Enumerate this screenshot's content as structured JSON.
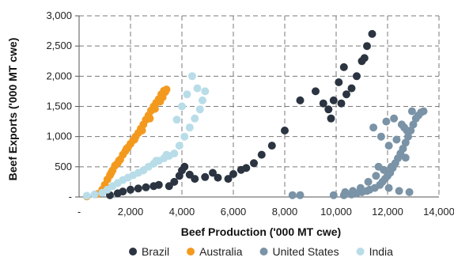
{
  "chart_data": {
    "type": "scatter",
    "xlabel": "Beef Production ('000 MT cwe)",
    "ylabel": "Beef Exports ('000 MT cwe)",
    "xlim": [
      0,
      14000
    ],
    "ylim": [
      0,
      3000
    ],
    "x_ticks": [
      0,
      2000,
      4000,
      6000,
      8000,
      10000,
      12000,
      14000
    ],
    "x_tick_labels": [
      "-",
      "2,000",
      "4,000",
      "6,000",
      "8,000",
      "10,000",
      "12,000",
      "14,000"
    ],
    "y_ticks": [
      0,
      500,
      1000,
      1500,
      2000,
      2500,
      3000
    ],
    "y_tick_labels": [
      "-",
      "500",
      "1,000",
      "1,500",
      "2,000",
      "2,500",
      "3,000"
    ],
    "grid": "dashed",
    "legend_position": "bottom",
    "series": [
      {
        "name": "Brazil",
        "color": "#2b3440",
        "points": [
          [
            1200,
            30
          ],
          [
            1500,
            60
          ],
          [
            1700,
            90
          ],
          [
            2000,
            120
          ],
          [
            2300,
            140
          ],
          [
            2600,
            160
          ],
          [
            2900,
            180
          ],
          [
            3100,
            200
          ],
          [
            3500,
            180
          ],
          [
            3700,
            250
          ],
          [
            3900,
            350
          ],
          [
            4000,
            440
          ],
          [
            4100,
            500
          ],
          [
            4300,
            370
          ],
          [
            4500,
            300
          ],
          [
            4900,
            330
          ],
          [
            5200,
            400
          ],
          [
            5400,
            320
          ],
          [
            5800,
            300
          ],
          [
            6000,
            380
          ],
          [
            6300,
            450
          ],
          [
            6500,
            480
          ],
          [
            6800,
            560
          ],
          [
            7100,
            700
          ],
          [
            7500,
            850
          ],
          [
            8000,
            1100
          ],
          [
            8600,
            1600
          ],
          [
            9200,
            1750
          ],
          [
            9500,
            1550
          ],
          [
            9700,
            1450
          ],
          [
            9900,
            1600
          ],
          [
            10100,
            1900
          ],
          [
            10300,
            2150
          ],
          [
            10600,
            1800
          ],
          [
            10800,
            2000
          ],
          [
            11000,
            2250
          ],
          [
            11200,
            2500
          ],
          [
            11400,
            2700
          ],
          [
            11100,
            2300
          ],
          [
            10400,
            1700
          ],
          [
            9800,
            1300
          ],
          [
            10200,
            1550
          ]
        ]
      },
      {
        "name": "Australia",
        "color": "#f39a1e",
        "points": [
          [
            300,
            10
          ],
          [
            700,
            50
          ],
          [
            900,
            120
          ],
          [
            1000,
            200
          ],
          [
            1100,
            290
          ],
          [
            1200,
            360
          ],
          [
            1300,
            440
          ],
          [
            1400,
            520
          ],
          [
            1500,
            560
          ],
          [
            1600,
            620
          ],
          [
            1700,
            700
          ],
          [
            1800,
            760
          ],
          [
            1900,
            820
          ],
          [
            2000,
            880
          ],
          [
            2100,
            940
          ],
          [
            2200,
            1000
          ],
          [
            2300,
            1060
          ],
          [
            2400,
            1130
          ],
          [
            2500,
            1200
          ],
          [
            2600,
            1280
          ],
          [
            2700,
            1350
          ],
          [
            2800,
            1430
          ],
          [
            2900,
            1500
          ],
          [
            3000,
            1560
          ],
          [
            3100,
            1620
          ],
          [
            3200,
            1700
          ],
          [
            3300,
            1760
          ],
          [
            3400,
            1780
          ],
          [
            3350,
            1740
          ],
          [
            3250,
            1650
          ],
          [
            3150,
            1580
          ],
          [
            2950,
            1460
          ],
          [
            2750,
            1300
          ],
          [
            2450,
            1100
          ],
          [
            2150,
            950
          ],
          [
            1850,
            800
          ],
          [
            1550,
            600
          ],
          [
            1250,
            400
          ]
        ]
      },
      {
        "name": "United States",
        "color": "#7a93a6",
        "points": [
          [
            8300,
            30
          ],
          [
            8600,
            30
          ],
          [
            9900,
            30
          ],
          [
            10300,
            30
          ],
          [
            10600,
            40
          ],
          [
            10800,
            60
          ],
          [
            11000,
            80
          ],
          [
            11200,
            100
          ],
          [
            11300,
            120
          ],
          [
            11500,
            150
          ],
          [
            11700,
            200
          ],
          [
            11800,
            250
          ],
          [
            11900,
            300
          ],
          [
            12000,
            350
          ],
          [
            12100,
            400
          ],
          [
            12200,
            480
          ],
          [
            12300,
            560
          ],
          [
            12400,
            640
          ],
          [
            12500,
            720
          ],
          [
            12600,
            800
          ],
          [
            12700,
            900
          ],
          [
            12800,
            1000
          ],
          [
            12900,
            1100
          ],
          [
            13000,
            1200
          ],
          [
            13100,
            1300
          ],
          [
            13200,
            1350
          ],
          [
            13300,
            1400
          ],
          [
            13400,
            1420
          ],
          [
            12950,
            1420
          ],
          [
            12650,
            1150
          ],
          [
            12350,
            950
          ],
          [
            12050,
            850
          ],
          [
            11750,
            1000
          ],
          [
            11450,
            1150
          ],
          [
            11950,
            1250
          ],
          [
            12250,
            1300
          ],
          [
            12550,
            1200
          ],
          [
            12750,
            1100
          ],
          [
            12150,
            500
          ],
          [
            11850,
            450
          ],
          [
            11550,
            350
          ],
          [
            11250,
            250
          ],
          [
            10950,
            150
          ],
          [
            10650,
            100
          ],
          [
            10350,
            80
          ],
          [
            12450,
            100
          ],
          [
            12850,
            80
          ],
          [
            12050,
            150
          ],
          [
            11650,
            500
          ],
          [
            12700,
            650
          ]
        ]
      },
      {
        "name": "India",
        "color": "#b8dde8",
        "points": [
          [
            300,
            20
          ],
          [
            600,
            40
          ],
          [
            900,
            70
          ],
          [
            1100,
            120
          ],
          [
            1300,
            180
          ],
          [
            1500,
            230
          ],
          [
            1700,
            280
          ],
          [
            1900,
            320
          ],
          [
            2100,
            360
          ],
          [
            2300,
            400
          ],
          [
            2500,
            440
          ],
          [
            2700,
            500
          ],
          [
            2900,
            550
          ],
          [
            3100,
            600
          ],
          [
            3300,
            640
          ],
          [
            3500,
            680
          ],
          [
            3700,
            720
          ],
          [
            3900,
            850
          ],
          [
            4100,
            1000
          ],
          [
            4300,
            1150
          ],
          [
            4500,
            1300
          ],
          [
            4700,
            1450
          ],
          [
            4800,
            1600
          ],
          [
            4900,
            1750
          ],
          [
            4600,
            1800
          ],
          [
            4400,
            2000
          ],
          [
            4200,
            1700
          ],
          [
            4000,
            1500
          ],
          [
            3800,
            1280
          ],
          [
            3400,
            700
          ],
          [
            3000,
            600
          ]
        ]
      }
    ]
  }
}
